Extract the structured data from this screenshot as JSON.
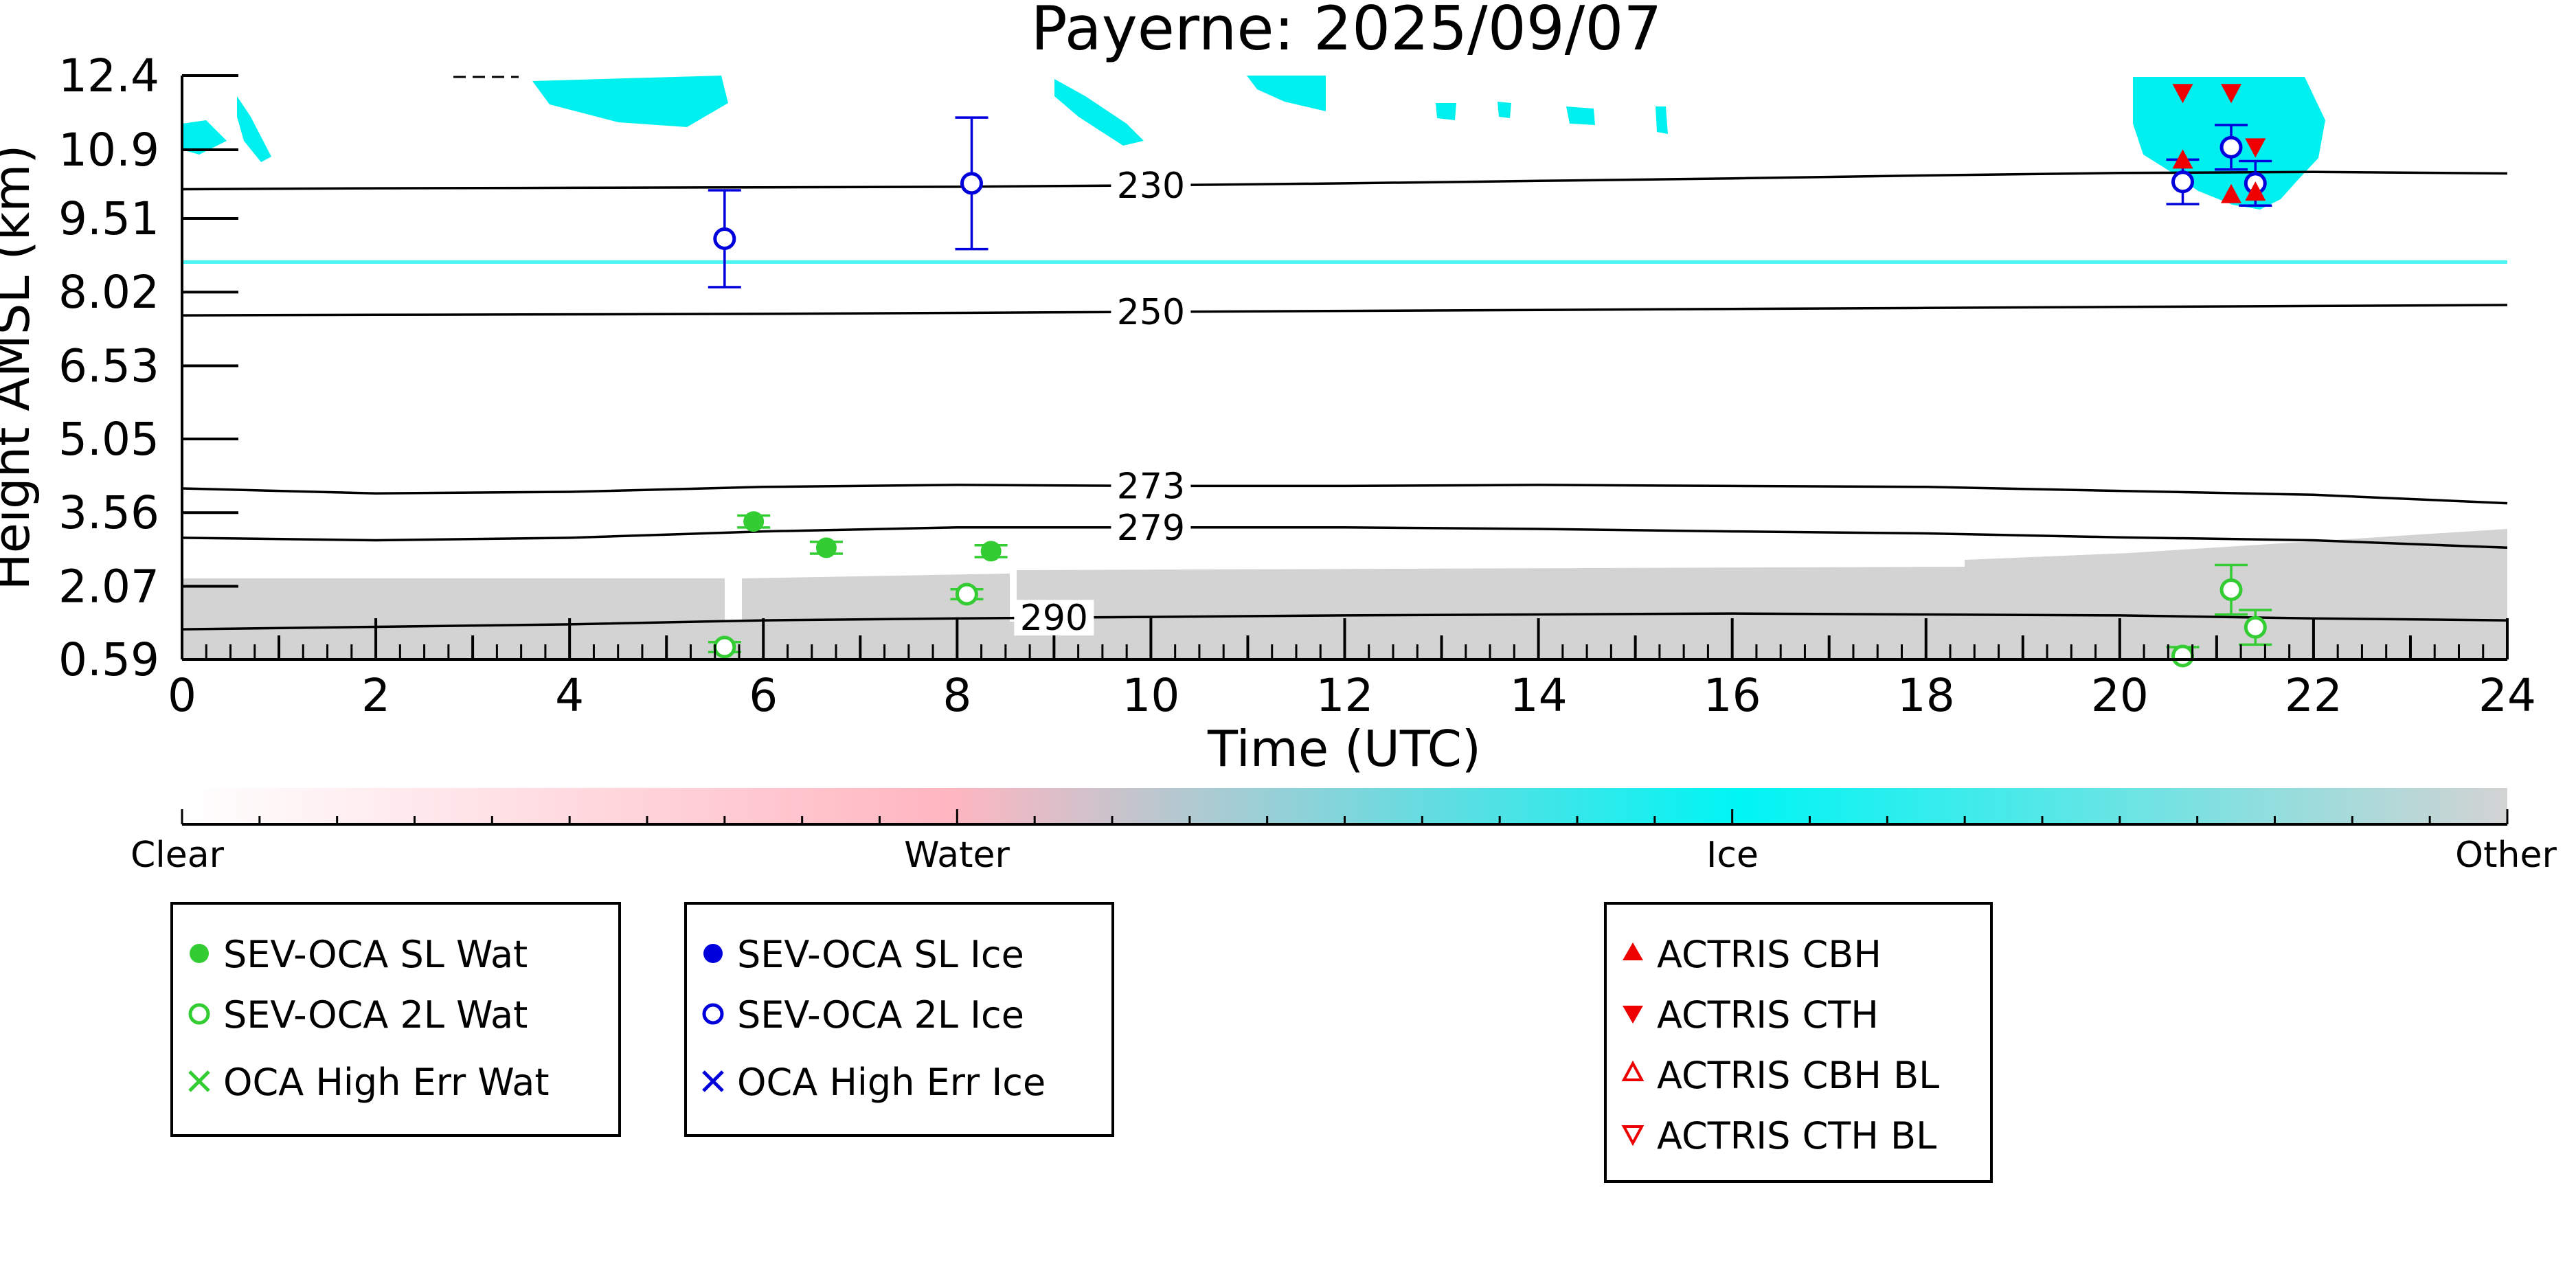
{
  "chart_data": {
    "type": "scatter",
    "title": "Payerne: 2025/09/07",
    "xlabel": "Time (UTC)",
    "ylabel": "Height AMSL (km)",
    "xlim": [
      0,
      24
    ],
    "ylim": [
      0.59,
      12.4
    ],
    "x_ticks": [
      "0",
      "2",
      "4",
      "6",
      "8",
      "10",
      "12",
      "14",
      "16",
      "18",
      "20",
      "22",
      "24"
    ],
    "y_ticks": [
      "12.4",
      "10.9",
      "9.51",
      "8.02",
      "6.53",
      "5.05",
      "3.56",
      "2.07",
      "0.59"
    ],
    "background": "cloud phase mask (Clear / Water / Ice / Other)",
    "colors": {
      "water": "#33cc33",
      "ice": "#0000dd",
      "actris": "#ee0000",
      "ice_mask": "#00f0f0",
      "other_mask": "#d0d0d0",
      "water_mask": "#ffb6c1"
    },
    "contours": [
      {
        "label": "230",
        "x": [
          0,
          2,
          4,
          6,
          8,
          10,
          12,
          14,
          16,
          18,
          20,
          22,
          24
        ],
        "y": [
          10.1,
          10.12,
          10.13,
          10.14,
          10.15,
          10.18,
          10.22,
          10.27,
          10.32,
          10.38,
          10.43,
          10.45,
          10.42
        ]
      },
      {
        "label": "250",
        "x": [
          0,
          2,
          4,
          6,
          8,
          10,
          12,
          14,
          16,
          18,
          20,
          22,
          24
        ],
        "y": [
          7.55,
          7.56,
          7.57,
          7.58,
          7.6,
          7.62,
          7.64,
          7.66,
          7.68,
          7.7,
          7.72,
          7.74,
          7.76
        ]
      },
      {
        "label": "273",
        "x": [
          0,
          2,
          4,
          6,
          8,
          10,
          12,
          14,
          16,
          18,
          20,
          22,
          24
        ],
        "y": [
          4.05,
          3.95,
          3.98,
          4.08,
          4.12,
          4.1,
          4.1,
          4.12,
          4.1,
          4.08,
          4.0,
          3.92,
          3.75
        ]
      },
      {
        "label": "279",
        "x": [
          0,
          2,
          4,
          6,
          8,
          10,
          12,
          14,
          16,
          18,
          20,
          22,
          24
        ],
        "y": [
          3.05,
          3.0,
          3.05,
          3.18,
          3.26,
          3.26,
          3.26,
          3.23,
          3.18,
          3.14,
          3.06,
          3.0,
          2.85
        ]
      },
      {
        "label": "290",
        "x": [
          0,
          2,
          4,
          6,
          8,
          10,
          12,
          14,
          16,
          18,
          20,
          22,
          24
        ],
        "y": [
          1.2,
          1.25,
          1.3,
          1.38,
          1.42,
          1.45,
          1.48,
          1.5,
          1.52,
          1.5,
          1.48,
          1.42,
          1.38
        ]
      }
    ],
    "colorbar": {
      "labels": [
        "Clear",
        "Water",
        "Ice",
        "Other"
      ]
    },
    "legends": [
      {
        "entries": [
          {
            "label": "SEV-OCA SL Wat",
            "marker": "filled-circle",
            "color": "#33cc33"
          },
          {
            "label": "SEV-OCA 2L Wat",
            "marker": "open-circle",
            "color": "#33cc33"
          },
          {
            "label": "OCA High Err Wat",
            "marker": "x",
            "color": "#33cc33"
          }
        ]
      },
      {
        "entries": [
          {
            "label": "SEV-OCA SL Ice",
            "marker": "filled-circle",
            "color": "#0000dd"
          },
          {
            "label": "SEV-OCA 2L Ice",
            "marker": "open-circle",
            "color": "#0000dd"
          },
          {
            "label": "OCA High Err Ice",
            "marker": "x",
            "color": "#0000dd"
          }
        ]
      },
      {
        "entries": [
          {
            "label": "ACTRIS CBH",
            "marker": "triangle-up",
            "color": "#ee0000"
          },
          {
            "label": "ACTRIS CTH",
            "marker": "triangle-down",
            "color": "#ee0000"
          },
          {
            "label": "ACTRIS CBH BL",
            "marker": "open-triangle-up",
            "color": "#ee0000"
          },
          {
            "label": "ACTRIS CTH BL",
            "marker": "open-triangle-down",
            "color": "#ee0000"
          }
        ]
      }
    ],
    "series": [
      {
        "name": "SEV-OCA SL Wat",
        "marker": "filled-circle",
        "color": "#33cc33",
        "points": [
          {
            "x": 5.9,
            "y": 3.38,
            "err": 0.12
          },
          {
            "x": 6.65,
            "y": 2.85,
            "err": 0.12
          },
          {
            "x": 8.35,
            "y": 2.78,
            "err": 0.12
          }
        ]
      },
      {
        "name": "SEV-OCA 2L Wat",
        "marker": "open-circle",
        "color": "#33cc33",
        "points": [
          {
            "x": 5.6,
            "y": 0.84,
            "err": 0.1
          },
          {
            "x": 8.1,
            "y": 1.91,
            "err": 0.1
          },
          {
            "x": 20.65,
            "y": 0.66,
            "err": 0.18
          },
          {
            "x": 21.15,
            "y": 2.0,
            "err": 0.5
          },
          {
            "x": 21.4,
            "y": 1.24,
            "err": 0.35
          }
        ]
      },
      {
        "name": "SEV-OCA 2L Ice",
        "marker": "open-circle",
        "color": "#0000dd",
        "points": [
          {
            "x": 5.6,
            "y": 9.1,
            "err": 0.98
          },
          {
            "x": 8.15,
            "y": 10.22,
            "err": 1.33
          },
          {
            "x": 20.65,
            "y": 10.25,
            "err": 0.45
          },
          {
            "x": 21.15,
            "y": 10.95,
            "err": 0.45
          },
          {
            "x": 21.4,
            "y": 10.22,
            "err": 0.45
          }
        ]
      },
      {
        "name": "ACTRIS CBH",
        "marker": "triangle-up",
        "color": "#ee0000",
        "points": [
          {
            "x": 20.65,
            "y": 10.7
          },
          {
            "x": 21.15,
            "y": 10.0
          },
          {
            "x": 21.4,
            "y": 10.05
          }
        ]
      },
      {
        "name": "ACTRIS CTH",
        "marker": "triangle-down",
        "color": "#ee0000",
        "points": [
          {
            "x": 20.65,
            "y": 12.05
          },
          {
            "x": 21.15,
            "y": 12.05
          },
          {
            "x": 21.4,
            "y": 10.95
          }
        ]
      }
    ]
  }
}
